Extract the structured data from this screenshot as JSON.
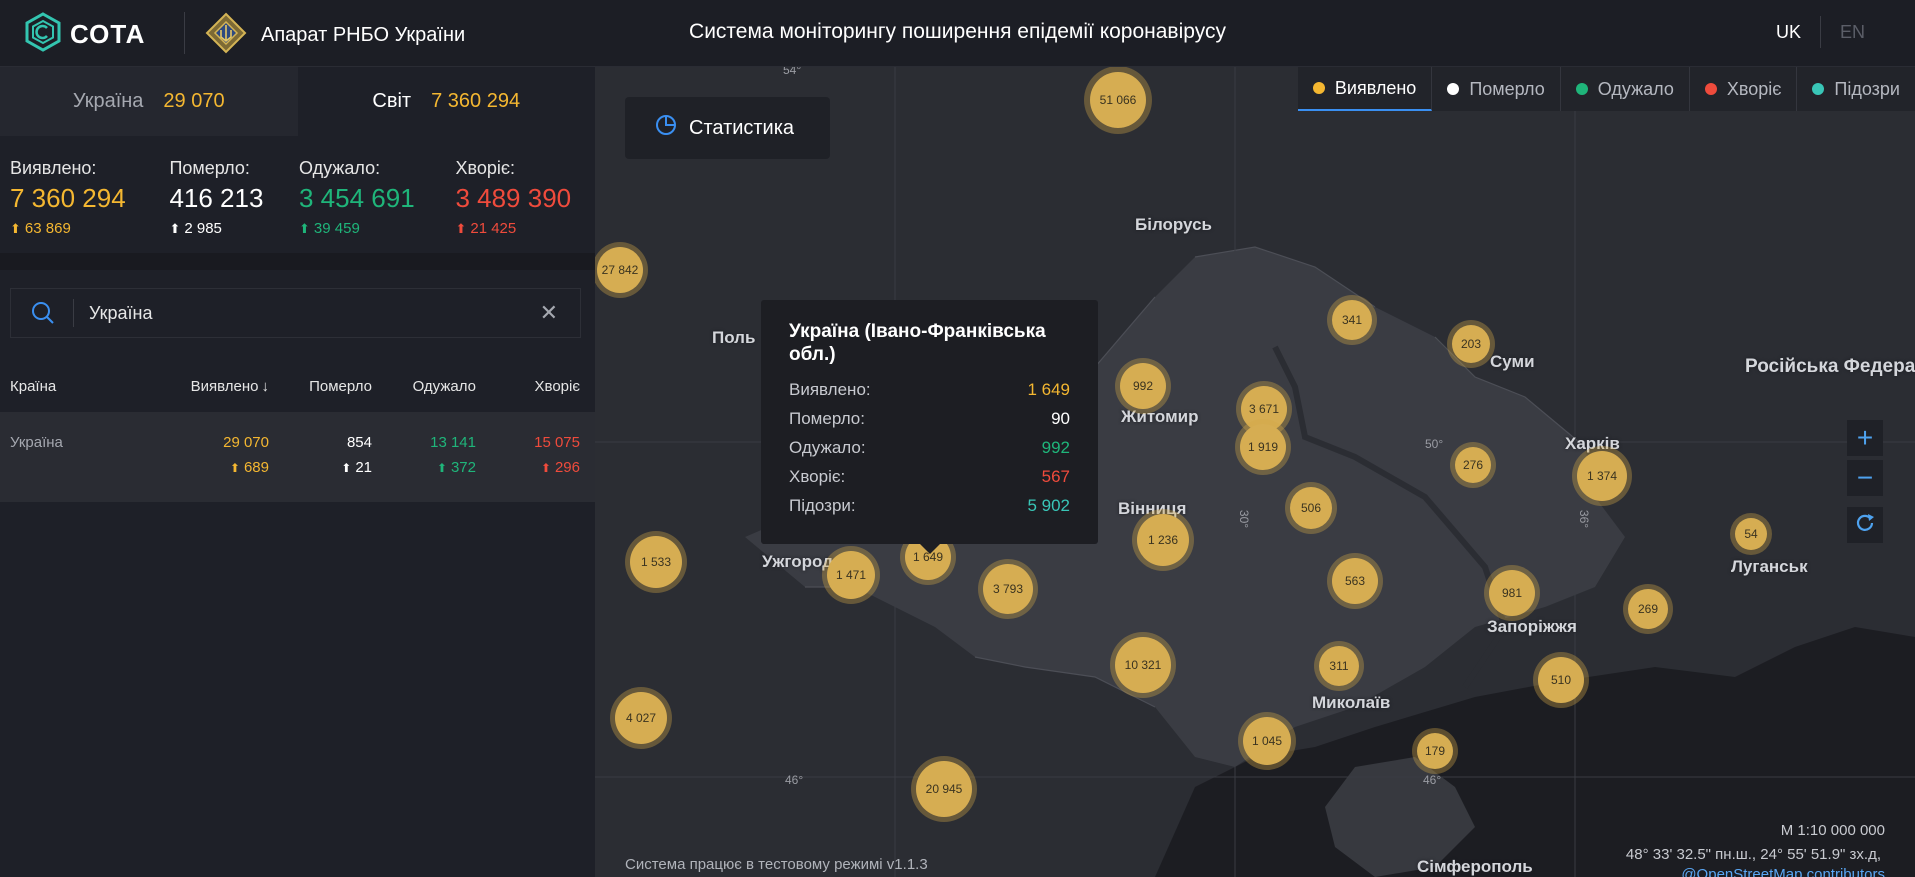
{
  "header": {
    "logo_icon": "cota-logo-icon",
    "logo_text": "СОТА",
    "org_icon": "rnbo-emblem-icon",
    "org_name": "Апарат РНБО України",
    "title": "Система моніторингу поширення епідемії коронавірусу",
    "lang_uk": "UK",
    "lang_en": "EN"
  },
  "tabs": {
    "ukraine_label": "Україна",
    "ukraine_value": "29 070",
    "world_label": "Світ",
    "world_value": "7 360 294"
  },
  "stats": {
    "confirmed_label": "Виявлено:",
    "confirmed_value": "7 360 294",
    "confirmed_inc": "63 869",
    "deaths_label": "Померло:",
    "deaths_value": "416 213",
    "deaths_inc": "2 985",
    "recovered_label": "Одужало:",
    "recovered_value": "3 454 691",
    "recovered_inc": "39 459",
    "sick_label": "Хворіє:",
    "sick_value": "3 489 390",
    "sick_inc": "21 425"
  },
  "search": {
    "value": "Україна",
    "icon": "search-icon",
    "clear_icon": "close-icon"
  },
  "table": {
    "headers": [
      "Країна",
      "Виявлено",
      "Померло",
      "Одужало",
      "Хворіє"
    ],
    "sort_icon": "arrow-down-icon",
    "rows": [
      {
        "country": "Україна",
        "confirmed": "29 070",
        "confirmed_inc": "689",
        "deaths": "854",
        "deaths_inc": "21",
        "recovered": "13 141",
        "recovered_inc": "372",
        "sick": "15 075",
        "sick_inc": "296"
      }
    ]
  },
  "map": {
    "stat_button": "Статистика",
    "stat_icon": "pie-chart-icon",
    "legend": [
      "Виявлено",
      "Померло",
      "Одужало",
      "Хворіє",
      "Підозри"
    ],
    "legend_colors": [
      "#f4b731",
      "#ffffff",
      "#1fb57a",
      "#ef4b3c",
      "#39c6b7"
    ],
    "zoom_in": "+",
    "zoom_out": "−",
    "refresh_icon": "refresh-icon",
    "scale": "М 1:10 000 000",
    "coords": "48° 33' 32.5\" пн.ш., 24° 55' 51.9\" зх.д,",
    "attribution": "@OpenStreetMap contributors",
    "footer_note": "Система працює в тестовому режимі v1.1.3",
    "grid_labels": [
      "54°",
      "50°",
      "46°",
      "46°",
      "30°",
      "36°",
      "54°"
    ],
    "places": [
      "Білорусь",
      "Поль",
      "Житомир",
      "Суми",
      "Російська Федерац",
      "Харків",
      "Вінниця",
      "Ужгород",
      "Луганськ",
      "Запоріжжя",
      "Миколаїв",
      "Сімферополь"
    ],
    "clusters": [
      "51 066",
      "27 842",
      "341",
      "203",
      "992",
      "3 671",
      "1 919",
      "276",
      "1 374",
      "506",
      "1 236",
      "54",
      "1 533",
      "1 649",
      "1 471",
      "3 793",
      "563",
      "981",
      "269",
      "10 321",
      "311",
      "510",
      "4 027",
      "1 045",
      "179",
      "20 945"
    ]
  },
  "tooltip": {
    "title": "Україна (Івано-Франківська обл.)",
    "rows": [
      {
        "label": "Виявлено:",
        "value": "1 649",
        "color": "#f4b731"
      },
      {
        "label": "Померло:",
        "value": "90",
        "color": "#ffffff"
      },
      {
        "label": "Одужало:",
        "value": "992",
        "color": "#1fb57a"
      },
      {
        "label": "Хворіє:",
        "value": "567",
        "color": "#ef4b3c"
      },
      {
        "label": "Підозри:",
        "value": "5 902",
        "color": "#39c6b7"
      }
    ]
  },
  "colors": {
    "confirmed": "#f4b731",
    "deaths": "#ffffff",
    "recovered": "#1fb57a",
    "sick": "#ef4b3c",
    "suspected": "#39c6b7",
    "accent": "#3a8ff1"
  }
}
